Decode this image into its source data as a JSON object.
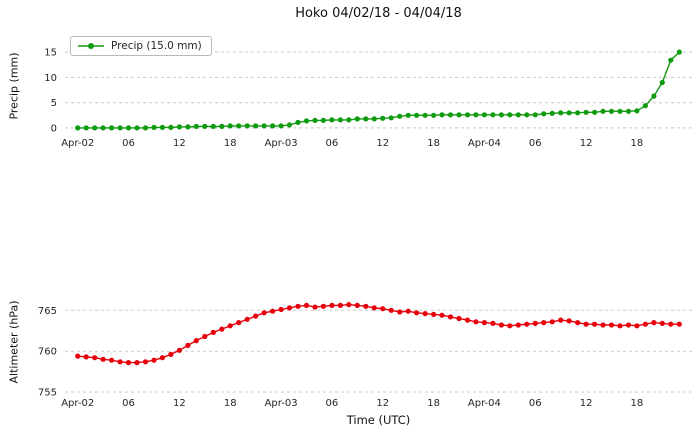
{
  "title": "Hoko 04/02/18 - 04/04/18",
  "chart_data": [
    {
      "type": "line",
      "id": "precip",
      "title": "Hoko 04/02/18 - 04/04/18",
      "ylabel": "Precip (mm)",
      "xlabel": "",
      "legend": [
        "Precip (15.0 mm)"
      ],
      "legend_position": "upper left",
      "color": "#0f9b0f",
      "marker": "circle",
      "grid": "horizontal dashed",
      "x_unit": "hours since 04/02/18 00:00 UTC",
      "x_start_hour": 0,
      "x_step_hours": 1,
      "xlim": [
        -1.5,
        72.5
      ],
      "ylim": [
        -1,
        17.8
      ],
      "yticks": [
        0,
        5,
        10,
        15
      ],
      "xtick_hours": [
        0,
        6,
        12,
        18,
        24,
        30,
        36,
        42,
        48,
        54,
        60,
        66
      ],
      "xtick_labels": [
        "Apr-02",
        "06",
        "12",
        "18",
        "Apr-03",
        "06",
        "12",
        "18",
        "Apr-04",
        "06",
        "12",
        "18"
      ],
      "values": [
        0,
        0,
        0,
        0,
        0,
        0,
        0,
        0,
        0,
        0.1,
        0.1,
        0.1,
        0.2,
        0.2,
        0.3,
        0.3,
        0.3,
        0.3,
        0.4,
        0.4,
        0.4,
        0.4,
        0.4,
        0.4,
        0.4,
        0.6,
        1.1,
        1.4,
        1.5,
        1.5,
        1.6,
        1.6,
        1.6,
        1.8,
        1.8,
        1.8,
        1.9,
        2.0,
        2.3,
        2.5,
        2.5,
        2.5,
        2.5,
        2.6,
        2.6,
        2.6,
        2.6,
        2.6,
        2.6,
        2.6,
        2.6,
        2.6,
        2.6,
        2.6,
        2.6,
        2.8,
        2.9,
        3.0,
        3.0,
        3.0,
        3.1,
        3.1,
        3.3,
        3.3,
        3.3,
        3.3,
        3.4,
        4.4,
        6.3,
        9.0,
        13.4,
        15.0
      ]
    },
    {
      "type": "line",
      "id": "alt",
      "title": "",
      "ylabel": "Altimeter (hPa)",
      "xlabel": "Time (UTC)",
      "legend": [],
      "color": "#e8000b",
      "marker": "circle",
      "grid": "horizontal dashed",
      "x_unit": "hours since 04/02/18 00:00 UTC",
      "x_start_hour": 0,
      "x_step_hours": 1,
      "xlim": [
        -1.5,
        72.5
      ],
      "ylim": [
        755,
        767
      ],
      "yticks": [
        755,
        760,
        765
      ],
      "xtick_hours": [
        0,
        6,
        12,
        18,
        24,
        30,
        36,
        42,
        48,
        54,
        60,
        66
      ],
      "xtick_labels": [
        "Apr-02",
        "06",
        "12",
        "18",
        "Apr-03",
        "06",
        "12",
        "18",
        "Apr-04",
        "06",
        "12",
        "18"
      ],
      "values": [
        759.4,
        759.3,
        759.2,
        759.0,
        758.9,
        758.7,
        758.6,
        758.6,
        758.7,
        758.9,
        759.2,
        759.6,
        760.1,
        760.7,
        761.3,
        761.8,
        762.3,
        762.7,
        763.1,
        763.5,
        763.9,
        764.3,
        764.7,
        764.9,
        765.1,
        765.3,
        765.5,
        765.6,
        765.4,
        765.5,
        765.6,
        765.6,
        765.7,
        765.6,
        765.5,
        765.3,
        765.2,
        765.0,
        764.8,
        764.9,
        764.7,
        764.6,
        764.5,
        764.4,
        764.2,
        764.0,
        763.8,
        763.6,
        763.5,
        763.4,
        763.2,
        763.1,
        763.2,
        763.3,
        763.4,
        763.5,
        763.6,
        763.8,
        763.7,
        763.5,
        763.3,
        763.3,
        763.2,
        763.2,
        763.1,
        763.2,
        763.1,
        763.3,
        763.5,
        763.4,
        763.3,
        763.3
      ]
    }
  ]
}
